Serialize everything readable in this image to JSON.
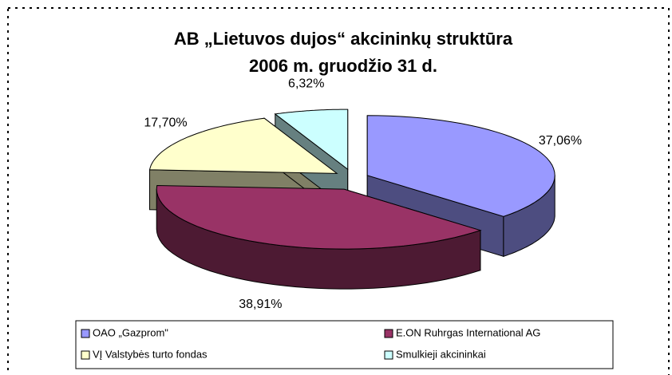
{
  "chart_data": {
    "type": "pie3d",
    "title": "AB „Lietuvos dujos“ akcininkų struktūra",
    "subtitle": "2006 m. gruodžio 31 d.",
    "categories": [
      "OAO „Gazprom\"",
      "E.ON Ruhrgas International AG",
      "VĮ Valstybės turto fondas",
      "Smulkieji akcininkai"
    ],
    "values": [
      37.06,
      38.91,
      17.7,
      6.32
    ],
    "value_labels": [
      "37,06%",
      "38,91%",
      "17,70%",
      "6,32%"
    ],
    "colors": [
      "#9999ff",
      "#993366",
      "#ffffcc",
      "#ccffff"
    ],
    "legend": "bottom"
  }
}
